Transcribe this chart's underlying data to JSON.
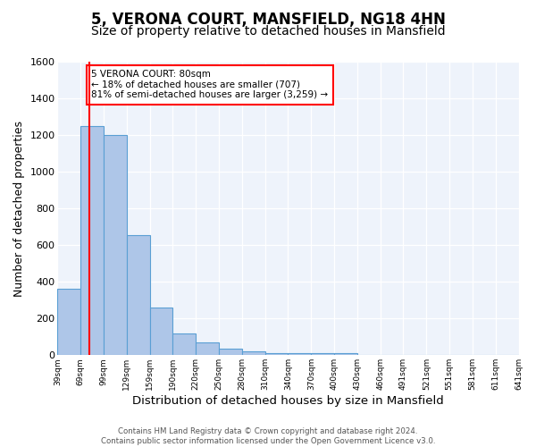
{
  "title": "5, VERONA COURT, MANSFIELD, NG18 4HN",
  "subtitle": "Size of property relative to detached houses in Mansfield",
  "xlabel": "Distribution of detached houses by size in Mansfield",
  "ylabel": "Number of detached properties",
  "bins": [
    "39sqm",
    "69sqm",
    "99sqm",
    "129sqm",
    "159sqm",
    "190sqm",
    "220sqm",
    "250sqm",
    "280sqm",
    "310sqm",
    "340sqm",
    "370sqm",
    "400sqm",
    "430sqm",
    "460sqm",
    "491sqm",
    "521sqm",
    "551sqm",
    "581sqm",
    "611sqm",
    "641sqm"
  ],
  "bar_heights": [
    360,
    1250,
    1200,
    655,
    260,
    120,
    70,
    35,
    20,
    10,
    10,
    10,
    10,
    0,
    0,
    0,
    0,
    0,
    0,
    0
  ],
  "bar_color": "#aec6e8",
  "bar_edge_color": "#5a9fd4",
  "annotation_text": "5 VERONA COURT: 80sqm\n← 18% of detached houses are smaller (707)\n81% of semi-detached houses are larger (3,259) →",
  "ylim": [
    0,
    1600
  ],
  "yticks": [
    0,
    200,
    400,
    600,
    800,
    1000,
    1200,
    1400,
    1600
  ],
  "background_color": "#eef3fb",
  "footer": "Contains HM Land Registry data © Crown copyright and database right 2024.\nContains public sector information licensed under the Open Government Licence v3.0.",
  "title_fontsize": 12,
  "subtitle_fontsize": 10,
  "xlabel_fontsize": 9.5,
  "ylabel_fontsize": 9
}
